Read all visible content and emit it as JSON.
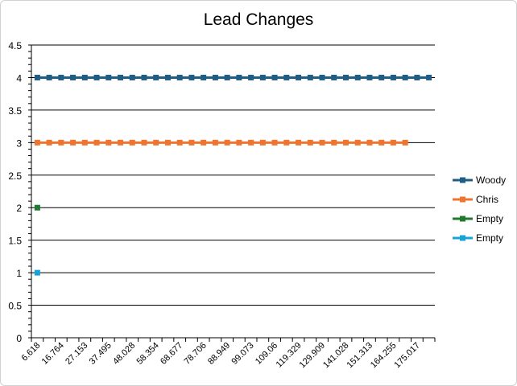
{
  "chart_data": {
    "type": "line",
    "title": "Lead Changes",
    "xlabel": "",
    "ylabel": "",
    "ylim": [
      0,
      4.5
    ],
    "y_ticks": [
      "0",
      "0.5",
      "1",
      "1.5",
      "2",
      "2.5",
      "3",
      "3.5",
      "4",
      "4.5"
    ],
    "x_tick_labels": [
      "6.618",
      "16.764",
      "27.153",
      "37.495",
      "48.028",
      "58.354",
      "68.677",
      "78.706",
      "88.949",
      "99.073",
      "109.06",
      "119.329",
      "129.909",
      "141.028",
      "151.313",
      "164.255",
      "175.017"
    ],
    "x_point_count": 34,
    "grid": true,
    "legend_position": "right",
    "series": [
      {
        "name": "Woody",
        "color": "#1F5D86",
        "marker": "square",
        "value": 4,
        "start_index": 0,
        "end_index": 33
      },
      {
        "name": "Chris",
        "color": "#EE7530",
        "marker": "square",
        "value": 3,
        "start_index": 0,
        "end_index": 31
      },
      {
        "name": "Empty",
        "color": "#20792E",
        "marker": "square",
        "value": 2,
        "start_index": 0,
        "end_index": 0
      },
      {
        "name": "Empty",
        "color": "#16A3D8",
        "marker": "square",
        "value": 1,
        "start_index": 0,
        "end_index": 0
      }
    ]
  }
}
